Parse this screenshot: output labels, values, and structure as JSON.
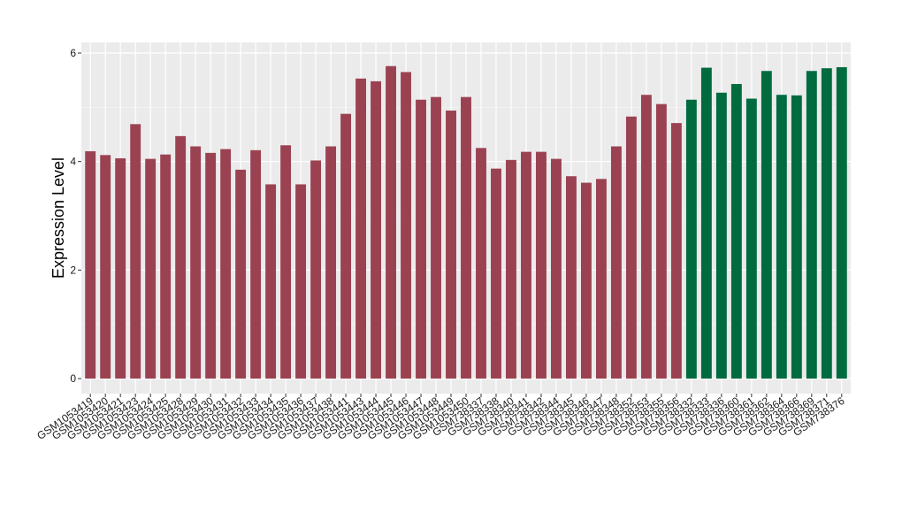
{
  "chart_data": {
    "type": "bar",
    "ylabel": "Expression Level",
    "xlabel": "",
    "ylim": [
      0,
      6.0
    ],
    "yticks": [
      0,
      2,
      4,
      6
    ],
    "grid": true,
    "panel_color": "#ebebeb",
    "categories": [
      "GSM1053419",
      "GSM1053420",
      "GSM1053421",
      "GSM1053423",
      "GSM1053424",
      "GSM1053425",
      "GSM1053428",
      "GSM1053429",
      "GSM1053430",
      "GSM1053431",
      "GSM1053432",
      "GSM1053433",
      "GSM1053434",
      "GSM1053435",
      "GSM1053436",
      "GSM1053437",
      "GSM1053438",
      "GSM1053441",
      "GSM1053443",
      "GSM1053444",
      "GSM1053445",
      "GSM1053446",
      "GSM1053447",
      "GSM1053448",
      "GSM1053449",
      "GSM1053450",
      "GSM738337",
      "GSM738338",
      "GSM738340",
      "GSM738341",
      "GSM738342",
      "GSM738344",
      "GSM738345",
      "GSM738346",
      "GSM738347",
      "GSM738348",
      "GSM738352",
      "GSM738353",
      "GSM738355",
      "GSM738356",
      "GSM738332",
      "GSM738333",
      "GSM738336",
      "GSM738360",
      "GSM738361",
      "GSM738362",
      "GSM738364",
      "GSM738366",
      "GSM738369",
      "GSM738371",
      "GSM738376"
    ],
    "values": [
      4.19,
      4.12,
      4.06,
      4.69,
      4.05,
      4.13,
      4.47,
      4.28,
      4.16,
      4.23,
      3.85,
      4.21,
      3.58,
      4.3,
      3.58,
      4.02,
      4.28,
      4.88,
      5.53,
      5.48,
      5.76,
      5.65,
      5.14,
      5.19,
      4.94,
      5.19,
      4.25,
      3.87,
      4.03,
      4.18,
      4.18,
      4.05,
      3.73,
      3.61,
      3.68,
      4.28,
      4.83,
      5.23,
      5.06,
      4.71,
      5.14,
      5.73,
      5.27,
      5.43,
      5.16,
      5.67,
      5.23,
      5.22,
      5.67,
      5.72,
      5.74
    ],
    "group_sizes": [
      40,
      11
    ],
    "group_colors": [
      "#9b4252",
      "#006b3f"
    ]
  }
}
